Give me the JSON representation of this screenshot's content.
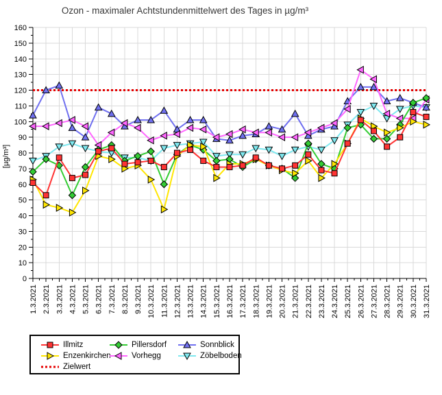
{
  "title": "Ozon -  maximaler Achtstundenmittelwert des Tages in µg/m³",
  "chart_data": {
    "type": "line",
    "title": "Ozon -  maximaler Achtstundenmittelwert des Tages in µg/m³",
    "ylabel": "[µg/m³]",
    "ylim": [
      0,
      160
    ],
    "yticks": [
      0,
      10,
      20,
      30,
      40,
      50,
      60,
      70,
      80,
      90,
      100,
      110,
      120,
      130,
      140,
      150,
      160
    ],
    "grid": true,
    "legend_position": "bottom-left",
    "x_labels": [
      "1.3.2021",
      "2.3.2021",
      "3.3.2021",
      "4.3.2021",
      "5.3.2021",
      "6.3.2021",
      "7.3.2021",
      "8.3.2021",
      "9.3.2021",
      "10.3.2021",
      "11.3.2021",
      "12.3.2021",
      "13.3.2021",
      "14.3.2021",
      "15.3.2021",
      "16.3.2021",
      "17.3.2021",
      "18.3.2021",
      "19.3.2021",
      "20.3.2021",
      "21.3.2021",
      "22.3.2021",
      "23.3.2021",
      "24.3.2021",
      "25.3.2021",
      "26.3.2021",
      "27.3.2021",
      "28.3.2021",
      "29.3.2021",
      "30.3.2021",
      "31.3.2021"
    ],
    "target": {
      "label": "Zielwert",
      "value": 120,
      "color": "#e60000"
    },
    "series": [
      {
        "name": "Illmitz",
        "color": "#ff3333",
        "marker": "square",
        "values": [
          61,
          53,
          77,
          64,
          66,
          81,
          83,
          73,
          74,
          75,
          71,
          80,
          82,
          75,
          71,
          71,
          72,
          77,
          72,
          70,
          72,
          79,
          69,
          67,
          86,
          101,
          94,
          84,
          90,
          106,
          103
        ]
      },
      {
        "name": "Enzenkirchen",
        "color": "#ffe600",
        "marker": "triangle-right",
        "values": [
          63,
          47,
          45,
          42,
          56,
          78,
          76,
          70,
          72,
          63,
          44,
          78,
          85,
          84,
          64,
          73,
          73,
          76,
          72,
          69,
          67,
          75,
          64,
          73,
          86,
          102,
          97,
          93,
          96,
          100,
          98
        ]
      },
      {
        "name": "Pillersdorf",
        "color": "#33cc33",
        "marker": "diamond",
        "values": [
          68,
          76,
          72,
          53,
          71,
          82,
          85,
          75,
          78,
          81,
          60,
          79,
          85,
          82,
          75,
          76,
          71,
          76,
          72,
          70,
          64,
          86,
          73,
          70,
          96,
          98,
          89,
          89,
          98,
          112,
          115
        ]
      },
      {
        "name": "Vorhegg",
        "color": "#ff66ff",
        "marker": "triangle-left",
        "values": [
          97,
          97,
          99,
          101,
          97,
          85,
          93,
          99,
          96,
          88,
          91,
          92,
          96,
          95,
          90,
          92,
          95,
          93,
          93,
          90,
          90,
          93,
          96,
          99,
          108,
          133,
          127,
          105,
          102,
          102,
          114
        ]
      },
      {
        "name": "Sonnblick",
        "color": "#7070f0",
        "marker": "triangle-up",
        "values": [
          104,
          120,
          123,
          96,
          90,
          109,
          105,
          97,
          101,
          101,
          107,
          95,
          101,
          101,
          89,
          88,
          91,
          92,
          97,
          95,
          105,
          91,
          95,
          97,
          113,
          122,
          122,
          113,
          115,
          112,
          109
        ]
      },
      {
        "name": "Zöbelboden",
        "color": "#7fe8ef",
        "marker": "triangle-down",
        "values": [
          75,
          78,
          84,
          86,
          83,
          81,
          80,
          77,
          77,
          75,
          83,
          85,
          86,
          87,
          78,
          79,
          79,
          83,
          82,
          78,
          82,
          84,
          82,
          88,
          98,
          106,
          110,
          102,
          108,
          110,
          109
        ]
      }
    ],
    "draw_order": [
      "Zöbelboden",
      "Sonnblick",
      "Vorhegg",
      "Pillersdorf",
      "Enzenkirchen",
      "Illmitz"
    ],
    "legend_columns": [
      [
        "Illmitz",
        "Enzenkirchen",
        "Zielwert"
      ],
      [
        "Pillersdorf",
        "Vorhegg"
      ],
      [
        "Sonnblick",
        "Zöbelboden"
      ]
    ]
  }
}
